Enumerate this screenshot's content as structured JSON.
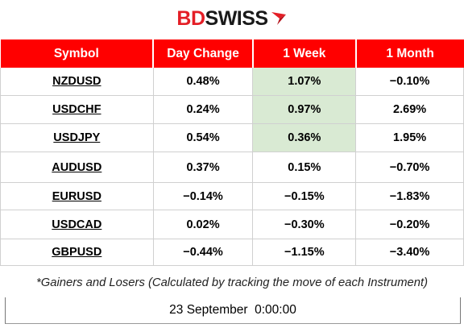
{
  "brand": {
    "part1": "BD",
    "part2": "SWISS",
    "accent_color": "#e41e26",
    "mark_icon": "brand-arrow-icon"
  },
  "table": {
    "header_color": "#ff0000",
    "highlight_color": "#d9ead3",
    "columns": [
      "Symbol",
      "Day Change",
      "1 Week",
      "1 Month"
    ],
    "rows": [
      {
        "symbol": "NZDUSD",
        "day": "0.48%",
        "week": "1.07%",
        "month": "−0.10%",
        "week_highlight": true
      },
      {
        "symbol": "USDCHF",
        "day": "0.24%",
        "week": "0.97%",
        "month": "2.69%",
        "week_highlight": true
      },
      {
        "symbol": "USDJPY",
        "day": "0.54%",
        "week": "0.36%",
        "month": "1.95%",
        "week_highlight": true
      },
      {
        "symbol": "AUDUSD",
        "day": "0.37%",
        "week": "0.15%",
        "month": "−0.70%",
        "week_highlight": false
      },
      {
        "symbol": "EURUSD",
        "day": "−0.14%",
        "week": "−0.15%",
        "month": "−1.83%",
        "week_highlight": false
      },
      {
        "symbol": "USDCAD",
        "day": "0.02%",
        "week": "−0.30%",
        "month": "−0.20%",
        "week_highlight": false
      },
      {
        "symbol": "GBPUSD",
        "day": "−0.44%",
        "week": "−1.15%",
        "month": "−3.40%",
        "week_highlight": false
      }
    ]
  },
  "footnote": "*Gainers and Losers (Calculated by tracking the move of each Instrument)",
  "timestamp": "23 September  0:00:00"
}
